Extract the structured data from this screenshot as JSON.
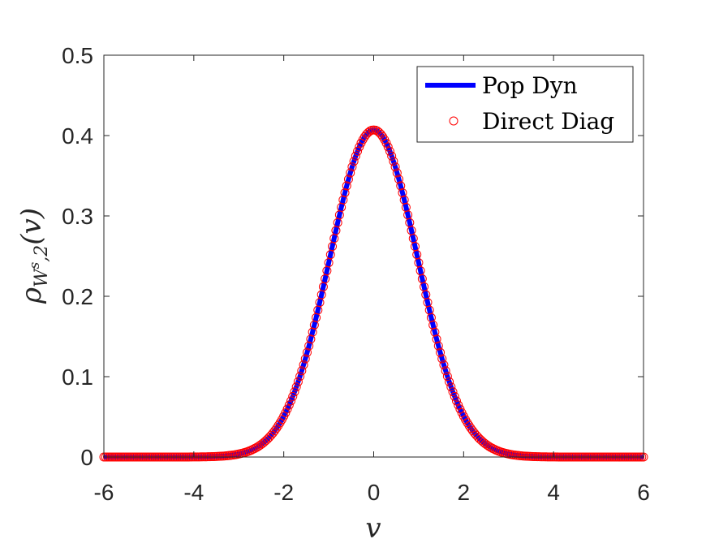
{
  "chart_data": {
    "type": "line",
    "xlabel": "v",
    "ylabel": {
      "base": "ρ",
      "sub_main": "W",
      "sub_sup": "s",
      "sub_tail": ",2",
      "arg": "(v)"
    },
    "xlim": [
      -6,
      6
    ],
    "ylim": [
      0,
      0.5
    ],
    "xticks": [
      "-6",
      "-4",
      "-2",
      "0",
      "2",
      "4",
      "6"
    ],
    "yticks": [
      "0",
      "0.1",
      "0.2",
      "0.3",
      "0.4",
      "0.5"
    ],
    "grid": false,
    "legend_position": "top-right",
    "series": [
      {
        "name": "Pop Dyn",
        "style": "line",
        "color": "#0000ff",
        "function": "gaussian",
        "mean": 0,
        "sigma": 0.98,
        "peak": 0.407,
        "x_range": [
          -6,
          6
        ]
      },
      {
        "name": "Direct Diag",
        "style": "circle-markers",
        "color": "#ff0000",
        "function": "gaussian",
        "mean": 0,
        "sigma": 0.98,
        "peak": 0.407,
        "x_range": [
          -6,
          6
        ],
        "step": 0.04
      }
    ]
  }
}
